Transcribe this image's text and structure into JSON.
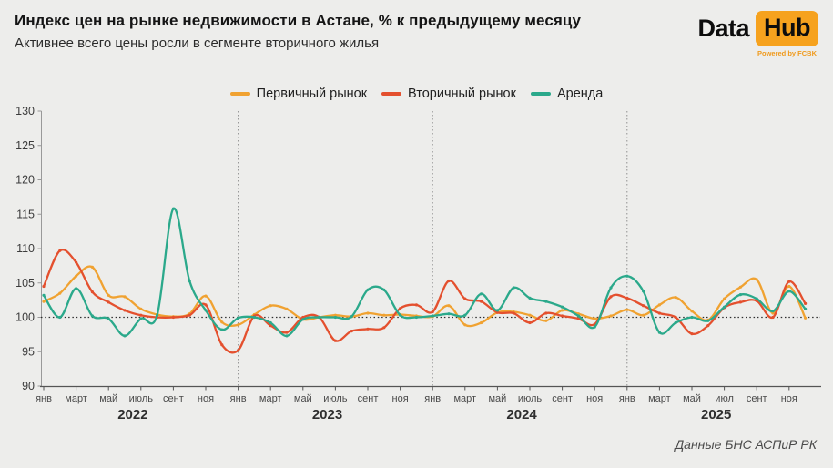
{
  "header": {
    "title": "Индекс цен на рынке недвижимости в Астане, % к предыдущему месяцу",
    "subtitle": "Активнее всего цены росли в сегменте вторичного жилья"
  },
  "logo": {
    "data_text": "Data",
    "hub_text": "Hub",
    "powered_text": "Powered by FCBK",
    "accent_color": "#F6A21E"
  },
  "footer": {
    "source": "Данные БНС АСПиР РК"
  },
  "chart_data": {
    "type": "line",
    "title": "Индекс цен на рынке недвижимости в Астане, % к предыдущему месяцу",
    "subtitle": "Активнее всего цены росли в сегменте вторичного жилья",
    "x_range": "янв 2022 — дек 2025, помесячно",
    "years": [
      "2022",
      "2023",
      "2024",
      "2025"
    ],
    "month_tick_labels": {
      "2022": [
        "янв",
        "март",
        "май",
        "июль",
        "сент",
        "ноя"
      ],
      "2023": [
        "янв",
        "март",
        "май",
        "июль",
        "сент",
        "ноя"
      ],
      "2024": [
        "янв",
        "март",
        "май",
        "июль",
        "сент",
        "ноя"
      ],
      "2025": [
        "янв",
        "март",
        "май",
        "июл",
        "сент",
        "ноя"
      ]
    },
    "ylim": [
      90,
      130
    ],
    "yticks": [
      90,
      95,
      100,
      105,
      110,
      115,
      120,
      125,
      130
    ],
    "baseline": 100,
    "grid": "none",
    "legend_position": "top",
    "year_separators_at_months": [
      12,
      24,
      36
    ],
    "series": [
      {
        "name": "Первичный рынок",
        "color": "#F0A231",
        "values": [
          102.3,
          103.5,
          106.0,
          107.3,
          103.2,
          103.0,
          101.2,
          100.4,
          100.1,
          100.5,
          103.1,
          99.3,
          98.9,
          100.4,
          101.7,
          101.2,
          99.7,
          100.0,
          100.3,
          100.1,
          100.6,
          100.3,
          100.4,
          100.2,
          100.1,
          101.7,
          98.9,
          99.2,
          100.7,
          100.8,
          100.3,
          99.5,
          101.0,
          100.5,
          99.8,
          100.2,
          101.1,
          100.3,
          101.8,
          102.9,
          100.9,
          99.6,
          102.7,
          104.4,
          105.5,
          100.6,
          104.5,
          99.9
        ]
      },
      {
        "name": "Вторичный рынок",
        "color": "#E4502E",
        "values": [
          104.5,
          109.7,
          108.0,
          103.7,
          102.2,
          101.0,
          100.3,
          100.0,
          100.0,
          100.3,
          101.8,
          96.0,
          95.2,
          100.2,
          98.8,
          97.8,
          100.0,
          100.0,
          96.6,
          98.0,
          98.3,
          98.5,
          101.3,
          101.8,
          100.8,
          105.3,
          102.7,
          102.3,
          100.7,
          100.6,
          99.2,
          100.6,
          100.2,
          99.8,
          99.0,
          103.0,
          102.8,
          101.7,
          100.6,
          100.0,
          97.6,
          98.8,
          101.4,
          102.2,
          102.4,
          100.0,
          105.2,
          102.0
        ]
      },
      {
        "name": "Аренда",
        "color": "#2BA98B",
        "values": [
          103.2,
          100.0,
          104.2,
          100.2,
          99.8,
          97.3,
          99.8,
          100.3,
          115.8,
          105.3,
          101.0,
          98.2,
          99.9,
          100.0,
          99.2,
          97.3,
          99.7,
          100.0,
          100.0,
          100.1,
          104.0,
          104.0,
          100.3,
          100.0,
          100.2,
          100.5,
          100.3,
          103.4,
          101.0,
          104.3,
          102.8,
          102.3,
          101.5,
          100.2,
          98.6,
          104.3,
          106.0,
          103.8,
          97.8,
          99.2,
          100.0,
          99.5,
          101.5,
          103.3,
          102.7,
          100.9,
          103.8,
          101.2
        ]
      }
    ]
  }
}
